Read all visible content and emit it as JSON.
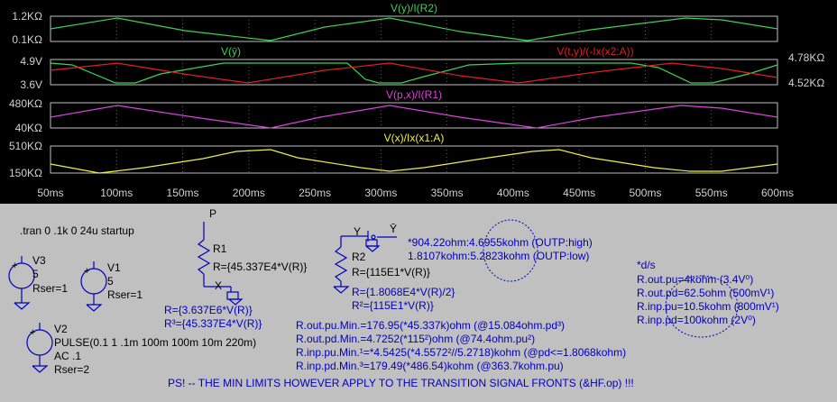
{
  "plot": {
    "colors": {
      "bg": "#000000",
      "grid": "#404040",
      "axis": "#c0c0c0",
      "tick": "#d0d0d0",
      "green": "#39d353",
      "red": "#e02020",
      "magenta": "#e040e0",
      "yellow": "#f0f040"
    },
    "xticks": [
      "50ms",
      "100ms",
      "150ms",
      "200ms",
      "250ms",
      "300ms",
      "350ms",
      "400ms",
      "450ms",
      "500ms",
      "550ms",
      "600ms"
    ],
    "pane1": {
      "trace": "V(y)/I(R2)",
      "ytop": "1.2KΩ",
      "ybot": "0.1KΩ"
    },
    "pane2": {
      "trace_left": "V(ӯ)",
      "trace_right": "V(t,y)/(-Ix(x2:A))",
      "ytop": "4.9V",
      "ybot": "3.6V",
      "ytop_right": "4.78KΩ",
      "ybot_right": "4.52KΩ"
    },
    "pane3": {
      "trace": "V(p,x)/I(R1)",
      "ytop": "480KΩ",
      "ybot": "40KΩ"
    },
    "pane4": {
      "trace": "V(x)/Ix(x1:A)",
      "ytop": "510KΩ",
      "ybot": "150KΩ"
    }
  },
  "schematic": {
    "tran": ".tran 0 .1k 0 24u startup",
    "v3": {
      "name": "V3",
      "value": "5",
      "rser": "Rser=1"
    },
    "v1": {
      "name": "V1",
      "value": "5",
      "rser": "Rser=1"
    },
    "v2": {
      "name": "V2",
      "value": "PULSE(0.1 1 .1m 100m 100m 10m 220m)",
      "ac": "AC .1",
      "rser": "Rser=2"
    },
    "r1": {
      "node_p": "P",
      "name": "R1",
      "value": "R={45.337E4*V(R)}",
      "node_x": "X",
      "expr1": "R={3.637E6*V(R)}",
      "expr2": "R³={45.337E4*V(R)}"
    },
    "r2": {
      "node_y": "Y",
      "node_ybar": "Ȳ",
      "name": "R2",
      "value": "R={115E1*V(R)}",
      "expr1": "R={1.8068E4*V(R)/2}",
      "expr2": "R²={115E1*V(R)}"
    },
    "outp_lines": [
      "*904.22ohm:4.6955kohm (OUTP:high)",
      "1.8107kohm:5.2823kohm (OUTP:low)"
    ],
    "ds_lines": [
      "*d/s",
      "R.out.pu=4kohm (3.4V⁰)",
      "R.out.pd=62.5ohm (500mV¹)",
      "R.inp.pu=10.5kohm (800mV¹)",
      "R.inp.pd=100kohm (2V⁰)"
    ],
    "min_lines": [
      "R.out.pu.Min.=176.95(*45.337k)ohm (@15.084ohm.pd³)",
      "R.out.pd.Min.=4.7252(*115²)ohm (@74.4ohm.pu²)",
      "R.inp.pu.Min.¹=*4.5425(*4.5572²//5.2718)kohm (@pd<=1.8068kohm)",
      "R.inp.pd.Min.³=179.49(*486.54)kohm (@363.7kohm.pu)"
    ],
    "ps": "PS! -- THE MIN LIMITS HOWEVER APPLY TO THE TRANSITION SIGNAL FRONTS (&HF.op) !!!"
  }
}
